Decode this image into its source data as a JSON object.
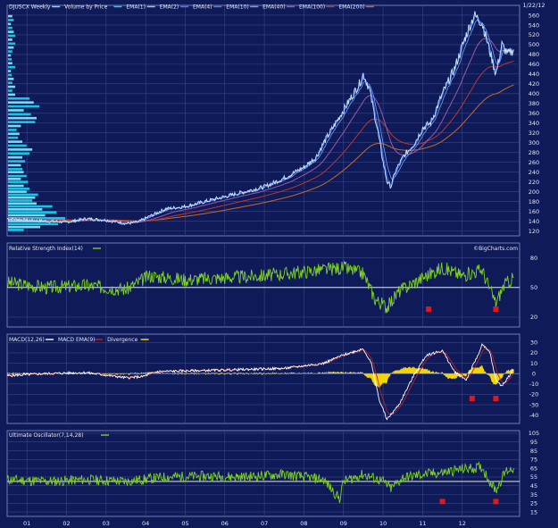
{
  "chart_data": [
    {
      "type": "line",
      "panel": "price",
      "ticker": "DJUSCX",
      "period": "Weekly",
      "date_label": "1/22/12",
      "watermark": "",
      "legend": [
        {
          "name": "DJUSCX Weekly",
          "color": "#9ad4ff"
        },
        {
          "name": "Volume by Price",
          "color": "#00e0ff"
        },
        {
          "name": "EMA(1)",
          "color": "#bfbfbf"
        },
        {
          "name": "EMA(2)",
          "color": "#5a6cff"
        },
        {
          "name": "EMA(4)",
          "color": "#3a8ae0"
        },
        {
          "name": "EMA(10)",
          "color": "#7a9aff"
        },
        {
          "name": "EMA(40)",
          "color": "#9a5aa8"
        },
        {
          "name": "EMA(100)",
          "color": "#c0362c"
        },
        {
          "name": "EMA(200)",
          "color": "#c96a2a"
        }
      ],
      "y_ticks": [
        120,
        140,
        160,
        180,
        200,
        220,
        240,
        260,
        280,
        300,
        320,
        340,
        360,
        380,
        400,
        420,
        440,
        460,
        480,
        500,
        520,
        540,
        560
      ],
      "ylim": [
        110,
        580
      ],
      "x_ticks": [
        "01",
        "02",
        "03",
        "04",
        "05",
        "06",
        "07",
        "08",
        "09",
        "10",
        "11",
        "12"
      ],
      "price_keypoints": [
        [
          2000.0,
          145
        ],
        [
          2000.5,
          142
        ],
        [
          2001.0,
          140
        ],
        [
          2001.5,
          138
        ],
        [
          2002.0,
          145
        ],
        [
          2002.5,
          142
        ],
        [
          2003.0,
          135
        ],
        [
          2003.3,
          138
        ],
        [
          2003.6,
          150
        ],
        [
          2004.0,
          165
        ],
        [
          2004.5,
          170
        ],
        [
          2005.0,
          180
        ],
        [
          2005.5,
          190
        ],
        [
          2006.0,
          200
        ],
        [
          2006.5,
          210
        ],
        [
          2007.0,
          228
        ],
        [
          2007.5,
          250
        ],
        [
          2007.8,
          270
        ],
        [
          2008.0,
          300
        ],
        [
          2008.3,
          340
        ],
        [
          2008.6,
          380
        ],
        [
          2008.9,
          420
        ],
        [
          2009.0,
          440
        ],
        [
          2009.15,
          410
        ],
        [
          2009.35,
          330
        ],
        [
          2009.5,
          260
        ],
        [
          2009.6,
          220
        ],
        [
          2009.7,
          210
        ],
        [
          2009.8,
          240
        ],
        [
          2010.0,
          270
        ],
        [
          2010.3,
          300
        ],
        [
          2010.5,
          330
        ],
        [
          2010.7,
          340
        ],
        [
          2010.9,
          380
        ],
        [
          2011.0,
          400
        ],
        [
          2011.3,
          450
        ],
        [
          2011.6,
          520
        ],
        [
          2011.8,
          560
        ],
        [
          2012.0,
          545
        ],
        [
          2012.15,
          500
        ],
        [
          2012.25,
          470
        ],
        [
          2012.35,
          440
        ],
        [
          2012.5,
          500
        ],
        [
          2012.65,
          480
        ],
        [
          2012.8,
          490
        ]
      ],
      "volume_by_price": [
        {
          "price": 122,
          "volume": 0.22
        },
        {
          "price": 128,
          "volume": 0.45
        },
        {
          "price": 134,
          "volume": 0.7
        },
        {
          "price": 140,
          "volume": 0.95
        },
        {
          "price": 146,
          "volume": 0.8
        },
        {
          "price": 152,
          "volume": 0.52
        },
        {
          "price": 158,
          "volume": 0.68
        },
        {
          "price": 164,
          "volume": 0.48
        },
        {
          "price": 170,
          "volume": 0.62
        },
        {
          "price": 176,
          "volume": 0.4
        },
        {
          "price": 182,
          "volume": 0.34
        },
        {
          "price": 188,
          "volume": 0.38
        },
        {
          "price": 194,
          "volume": 0.42
        },
        {
          "price": 200,
          "volume": 0.26
        },
        {
          "price": 206,
          "volume": 0.3
        },
        {
          "price": 212,
          "volume": 0.22
        },
        {
          "price": 220,
          "volume": 0.28
        },
        {
          "price": 226,
          "volume": 0.18
        },
        {
          "price": 232,
          "volume": 0.26
        },
        {
          "price": 240,
          "volume": 0.22
        },
        {
          "price": 246,
          "volume": 0.2
        },
        {
          "price": 254,
          "volume": 0.18
        },
        {
          "price": 262,
          "volume": 0.24
        },
        {
          "price": 270,
          "volume": 0.2
        },
        {
          "price": 278,
          "volume": 0.3
        },
        {
          "price": 286,
          "volume": 0.34
        },
        {
          "price": 294,
          "volume": 0.26
        },
        {
          "price": 302,
          "volume": 0.2
        },
        {
          "price": 310,
          "volume": 0.14
        },
        {
          "price": 318,
          "volume": 0.16
        },
        {
          "price": 326,
          "volume": 0.12
        },
        {
          "price": 334,
          "volume": 0.18
        },
        {
          "price": 342,
          "volume": 0.38
        },
        {
          "price": 350,
          "volume": 0.4
        },
        {
          "price": 358,
          "volume": 0.32
        },
        {
          "price": 366,
          "volume": 0.22
        },
        {
          "price": 374,
          "volume": 0.44
        },
        {
          "price": 382,
          "volume": 0.36
        },
        {
          "price": 390,
          "volume": 0.3
        },
        {
          "price": 398,
          "volume": 0.1
        },
        {
          "price": 406,
          "volume": 0.06
        },
        {
          "price": 414,
          "volume": 0.1
        },
        {
          "price": 422,
          "volume": 0.06
        },
        {
          "price": 430,
          "volume": 0.08
        },
        {
          "price": 438,
          "volume": 0.05
        },
        {
          "price": 446,
          "volume": 0.04
        },
        {
          "price": 454,
          "volume": 0.1
        },
        {
          "price": 462,
          "volume": 0.06
        },
        {
          "price": 470,
          "volume": 0.05
        },
        {
          "price": 478,
          "volume": 0.04
        },
        {
          "price": 486,
          "volume": 0.06
        },
        {
          "price": 494,
          "volume": 0.08
        },
        {
          "price": 502,
          "volume": 0.1
        },
        {
          "price": 510,
          "volume": 0.06
        },
        {
          "price": 518,
          "volume": 0.1
        },
        {
          "price": 526,
          "volume": 0.08
        },
        {
          "price": 534,
          "volume": 0.06
        },
        {
          "price": 542,
          "volume": 0.04
        },
        {
          "price": 550,
          "volume": 0.08
        },
        {
          "price": 558,
          "volume": 0.06
        }
      ]
    },
    {
      "type": "line",
      "panel": "rsi",
      "title": "Relative Strength Index(14)",
      "watermark": "©BigCharts.com",
      "y_ticks": [
        20,
        50,
        80
      ],
      "ylim": [
        10,
        95
      ],
      "reference_line": 50,
      "keypoints": [
        [
          2000.0,
          55
        ],
        [
          2001.0,
          50
        ],
        [
          2002.0,
          52
        ],
        [
          2003.0,
          48
        ],
        [
          2003.6,
          62
        ],
        [
          2004.5,
          58
        ],
        [
          2005.5,
          60
        ],
        [
          2006.5,
          62
        ],
        [
          2007.5,
          66
        ],
        [
          2008.5,
          70
        ],
        [
          2009.0,
          64
        ],
        [
          2009.3,
          38
        ],
        [
          2009.6,
          30
        ],
        [
          2009.9,
          46
        ],
        [
          2010.5,
          60
        ],
        [
          2011.0,
          70
        ],
        [
          2011.5,
          62
        ],
        [
          2012.0,
          68
        ],
        [
          2012.2,
          48
        ],
        [
          2012.35,
          34
        ],
        [
          2012.55,
          52
        ],
        [
          2012.8,
          60
        ]
      ],
      "markers": [
        {
          "x": 2010.65,
          "y": 28
        },
        {
          "x": 2012.35,
          "y": 28
        }
      ]
    },
    {
      "type": "line",
      "panel": "macd",
      "legend": [
        {
          "name": "MACD(12,26)",
          "color": "#ffffff"
        },
        {
          "name": "MACD EMA(9)",
          "color": "#c02020"
        },
        {
          "name": "Divergence",
          "color": "#ffe000"
        }
      ],
      "y_ticks": [
        -40,
        -30,
        -20,
        -10,
        0,
        10,
        20,
        30
      ],
      "ylim": [
        -48,
        38
      ],
      "macd_keypoints": [
        [
          2000.0,
          -2
        ],
        [
          2001.0,
          0
        ],
        [
          2002.0,
          1
        ],
        [
          2003.0,
          -4
        ],
        [
          2003.4,
          -3
        ],
        [
          2003.8,
          2
        ],
        [
          2005.0,
          3
        ],
        [
          2006.0,
          4
        ],
        [
          2007.0,
          5
        ],
        [
          2007.6,
          8
        ],
        [
          2008.0,
          10
        ],
        [
          2008.5,
          18
        ],
        [
          2009.0,
          24
        ],
        [
          2009.2,
          10
        ],
        [
          2009.4,
          -25
        ],
        [
          2009.6,
          -44
        ],
        [
          2009.9,
          -30
        ],
        [
          2010.3,
          0
        ],
        [
          2010.6,
          18
        ],
        [
          2011.0,
          22
        ],
        [
          2011.3,
          2
        ],
        [
          2011.6,
          -6
        ],
        [
          2011.9,
          18
        ],
        [
          2012.0,
          28
        ],
        [
          2012.2,
          20
        ],
        [
          2012.35,
          -6
        ],
        [
          2012.5,
          -12
        ],
        [
          2012.8,
          4
        ]
      ],
      "markers": [
        {
          "x": 2011.75,
          "y": -24
        },
        {
          "x": 2012.35,
          "y": -24
        }
      ]
    },
    {
      "type": "line",
      "panel": "ultimate_oscillator",
      "title": "Ultimate Oscillator(7,14,28)",
      "y_ticks": [
        15,
        25,
        35,
        45,
        55,
        65,
        75,
        85,
        95,
        105
      ],
      "ylim": [
        10,
        108
      ],
      "reference_line": 50,
      "keypoints": [
        [
          2000.0,
          52
        ],
        [
          2001.0,
          50
        ],
        [
          2002.0,
          52
        ],
        [
          2003.0,
          50
        ],
        [
          2004.0,
          55
        ],
        [
          2005.0,
          56
        ],
        [
          2006.0,
          55
        ],
        [
          2007.0,
          58
        ],
        [
          2008.0,
          52
        ],
        [
          2008.4,
          30
        ],
        [
          2008.5,
          50
        ],
        [
          2009.0,
          58
        ],
        [
          2009.5,
          50
        ],
        [
          2009.7,
          42
        ],
        [
          2010.0,
          54
        ],
        [
          2010.5,
          58
        ],
        [
          2011.0,
          60
        ],
        [
          2011.5,
          64
        ],
        [
          2012.0,
          66
        ],
        [
          2012.2,
          50
        ],
        [
          2012.35,
          40
        ],
        [
          2012.6,
          62
        ],
        [
          2012.8,
          65
        ]
      ],
      "markers": [
        {
          "x": 2011.0,
          "y": 27
        },
        {
          "x": 2012.35,
          "y": 27
        }
      ]
    }
  ]
}
